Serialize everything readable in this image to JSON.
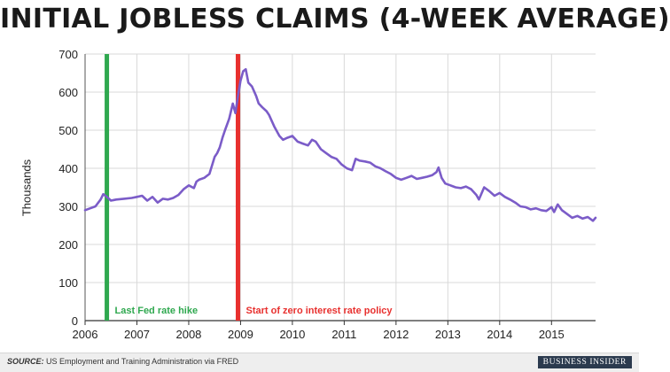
{
  "chart_data": {
    "type": "line",
    "title": "INITIAL JOBLESS CLAIMS (4-WEEK AVERAGE)",
    "ylabel": "Thousands",
    "xlabel": "",
    "ylim": [
      0,
      700
    ],
    "xlim": [
      2006.0,
      2015.85
    ],
    "y_ticks": [
      0,
      100,
      200,
      300,
      400,
      500,
      600,
      700
    ],
    "x_ticks": [
      2006,
      2007,
      2008,
      2009,
      2010,
      2011,
      2012,
      2013,
      2014,
      2015
    ],
    "x_tick_labels": [
      "2006",
      "2007",
      "2008",
      "2009",
      "2010",
      "2011",
      "2012",
      "2013",
      "2014",
      "2015"
    ],
    "grid": true,
    "series": [
      {
        "color": "#7b5cc8",
        "x": [
          2006.0,
          2006.1,
          2006.2,
          2006.3,
          2006.35,
          2006.42,
          2006.5,
          2006.6,
          2006.75,
          2006.9,
          2007.0,
          2007.1,
          2007.2,
          2007.3,
          2007.4,
          2007.5,
          2007.6,
          2007.7,
          2007.8,
          2007.9,
          2008.0,
          2008.1,
          2008.15,
          2008.2,
          2008.3,
          2008.4,
          2008.5,
          2008.55,
          2008.6,
          2008.65,
          2008.7,
          2008.78,
          2008.85,
          2008.9,
          2008.95,
          2009.0,
          2009.05,
          2009.1,
          2009.15,
          2009.22,
          2009.3,
          2009.35,
          2009.42,
          2009.5,
          2009.55,
          2009.65,
          2009.75,
          2009.82,
          2009.9,
          2010.0,
          2010.1,
          2010.2,
          2010.3,
          2010.38,
          2010.45,
          2010.55,
          2010.65,
          2010.75,
          2010.85,
          2010.95,
          2011.05,
          2011.15,
          2011.22,
          2011.3,
          2011.4,
          2011.5,
          2011.6,
          2011.7,
          2011.8,
          2011.9,
          2012.0,
          2012.1,
          2012.2,
          2012.3,
          2012.4,
          2012.5,
          2012.6,
          2012.7,
          2012.78,
          2012.82,
          2012.88,
          2012.95,
          2013.05,
          2013.15,
          2013.25,
          2013.35,
          2013.45,
          2013.55,
          2013.6,
          2013.7,
          2013.8,
          2013.9,
          2014.0,
          2014.1,
          2014.2,
          2014.3,
          2014.4,
          2014.5,
          2014.6,
          2014.7,
          2014.8,
          2014.9,
          2015.0,
          2015.05,
          2015.12,
          2015.2,
          2015.3,
          2015.4,
          2015.5,
          2015.6,
          2015.7,
          2015.8,
          2015.85
        ],
        "y": [
          290,
          295,
          300,
          318,
          332,
          325,
          315,
          318,
          320,
          322,
          325,
          328,
          315,
          325,
          310,
          320,
          318,
          322,
          330,
          345,
          355,
          348,
          365,
          370,
          375,
          385,
          430,
          440,
          455,
          480,
          500,
          530,
          570,
          545,
          590,
          630,
          655,
          660,
          625,
          615,
          590,
          570,
          560,
          550,
          540,
          510,
          485,
          475,
          480,
          485,
          470,
          465,
          460,
          475,
          470,
          450,
          440,
          430,
          425,
          410,
          400,
          395,
          425,
          420,
          418,
          415,
          405,
          400,
          392,
          385,
          375,
          370,
          375,
          380,
          372,
          375,
          378,
          382,
          390,
          402,
          375,
          360,
          355,
          350,
          348,
          352,
          345,
          330,
          318,
          350,
          340,
          328,
          335,
          325,
          318,
          310,
          300,
          298,
          292,
          295,
          290,
          288,
          298,
          285,
          305,
          290,
          280,
          270,
          275,
          268,
          272,
          262,
          270
        ]
      }
    ],
    "annotations": [
      {
        "x": 2006.42,
        "color": "#2fa84f",
        "label": "Last Fed rate hike"
      },
      {
        "x": 2008.95,
        "color": "#e8302e",
        "label": "Start of zero interest rate policy"
      }
    ]
  },
  "footer": {
    "source_prefix": "SOURCE:",
    "source_text": " US Employment and Training Administration via FRED",
    "brand": "BUSINESS INSIDER"
  }
}
